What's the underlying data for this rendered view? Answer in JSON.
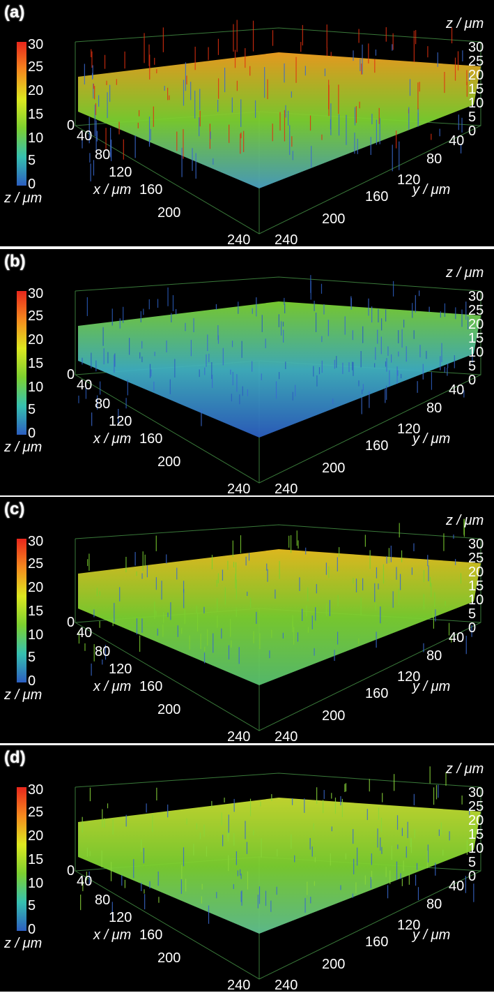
{
  "panels": [
    {
      "label": "(a)",
      "peak_color": "#e03010"
    },
    {
      "label": "(b)",
      "peak_color": "#2c5ec0"
    },
    {
      "label": "(c)",
      "peak_color": "#7cd030"
    },
    {
      "label": "(d)",
      "peak_color": "#8ad63a"
    }
  ],
  "colorbar": {
    "ticks": [
      "30",
      "25",
      "20",
      "15",
      "10",
      "5",
      "0"
    ],
    "unit_label": "z / μm",
    "colors": [
      "#e8261c",
      "#f58a1e",
      "#dde820",
      "#7cd030",
      "#36c0b0",
      "#2c5ec0"
    ]
  },
  "axes": {
    "z_label": "z / μm",
    "x_label": "x / μm",
    "y_label": "y / μm",
    "z_ticks": [
      "30",
      "25",
      "20",
      "15",
      "10",
      "5",
      "0"
    ],
    "x_ticks": [
      "0",
      "40",
      "80",
      "120",
      "160",
      "200",
      "240"
    ],
    "y_ticks": [
      "40",
      "80",
      "120",
      "160",
      "200",
      "240"
    ]
  }
}
